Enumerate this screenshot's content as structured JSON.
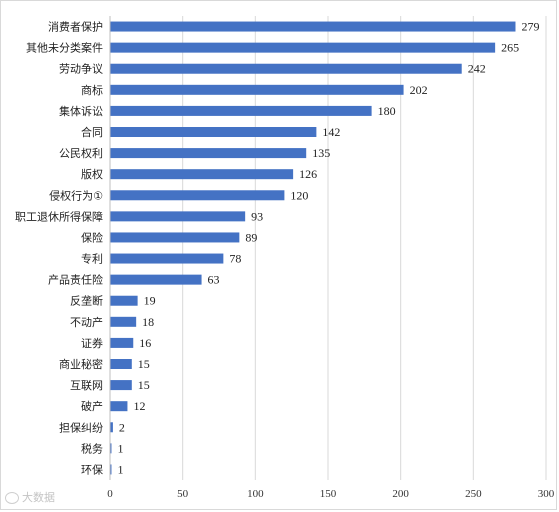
{
  "chart_data": {
    "type": "bar",
    "orientation": "horizontal",
    "categories": [
      "消费者保护",
      "其他未分类案件",
      "劳动争议",
      "商标",
      "集体诉讼",
      "合同",
      "公民权利",
      "版权",
      "侵权行为①",
      "职工退休所得保障",
      "保险",
      "专利",
      "产品责任险",
      "反垄断",
      "不动产",
      "证券",
      "商业秘密",
      "互联网",
      "破产",
      "担保纠纷",
      "税务",
      "环保"
    ],
    "values": [
      279,
      265,
      242,
      202,
      180,
      142,
      135,
      126,
      120,
      93,
      89,
      78,
      63,
      19,
      18,
      16,
      15,
      15,
      12,
      2,
      1,
      1
    ],
    "xlim": [
      0,
      300
    ],
    "xticks": [
      0,
      50,
      100,
      150,
      200,
      250,
      300
    ],
    "grid": "vertical",
    "legend": "none",
    "bar_color": "#4472C4",
    "grid_color": "#d9d9d9"
  },
  "watermark": "大数据",
  "watermark_icon": "wechat-icon"
}
